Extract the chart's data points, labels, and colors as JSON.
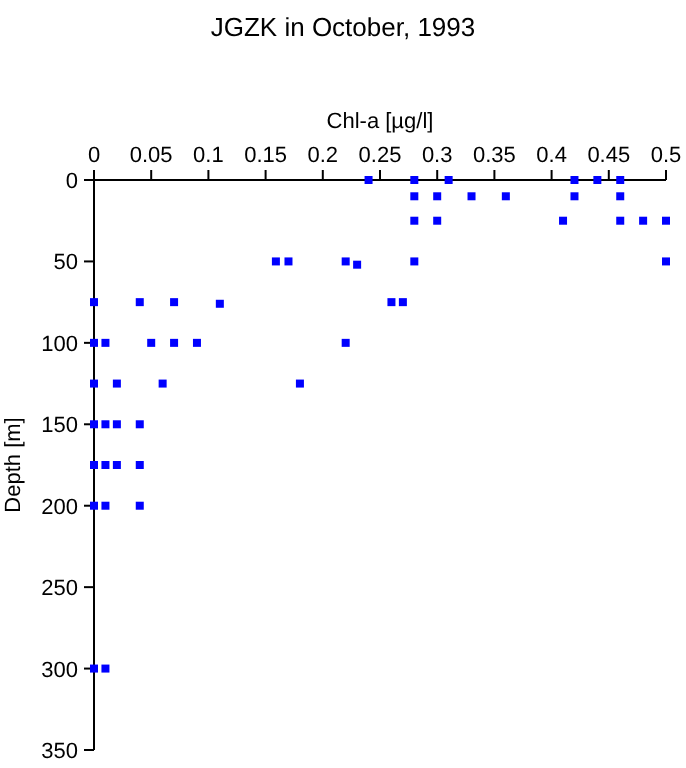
{
  "chart_data": {
    "type": "scatter",
    "title": "JGZK in October, 1993",
    "xlabel": "Chl-a [µg/l]",
    "ylabel": "Depth [m]",
    "xlim": [
      0,
      0.5
    ],
    "xticks": [
      0,
      0.05,
      0.1,
      0.15,
      0.2,
      0.25,
      0.3,
      0.35,
      0.4,
      0.45,
      0.5
    ],
    "ylim": [
      350,
      0
    ],
    "yticks": [
      0,
      50,
      100,
      150,
      200,
      250,
      300,
      350
    ],
    "marker": "square",
    "grid": false,
    "series": [
      {
        "color": "#0000ff",
        "x": [
          0.24,
          0.28,
          0.31,
          0.42,
          0.44,
          0.46,
          0.28,
          0.3,
          0.33,
          0.36,
          0.42,
          0.46,
          0.28,
          0.3,
          0.41,
          0.46,
          0.48,
          0.5,
          0.159,
          0.17,
          0.22,
          0.23,
          0.28,
          0.5,
          0,
          0.04,
          0.07,
          0.11,
          0.26,
          0.27,
          0,
          0.01,
          0.05,
          0.07,
          0.09,
          0.22,
          0,
          0.02,
          0.06,
          0.18,
          0,
          0.01,
          0.02,
          0.04,
          0,
          0.01,
          0.02,
          0.04,
          0,
          0.01,
          0.04,
          0,
          0.01
        ],
        "values": [
          0,
          0,
          0,
          0,
          0,
          0,
          10,
          10,
          10,
          10,
          10,
          10,
          25,
          25,
          25,
          25,
          25,
          25,
          50,
          50,
          50,
          52,
          50,
          50,
          75,
          75,
          75,
          76,
          75,
          75,
          100,
          100,
          100,
          100,
          100,
          100,
          125,
          125,
          125,
          125,
          150,
          150,
          150,
          150,
          175,
          175,
          175,
          175,
          200,
          200,
          200,
          300,
          300
        ]
      }
    ]
  }
}
